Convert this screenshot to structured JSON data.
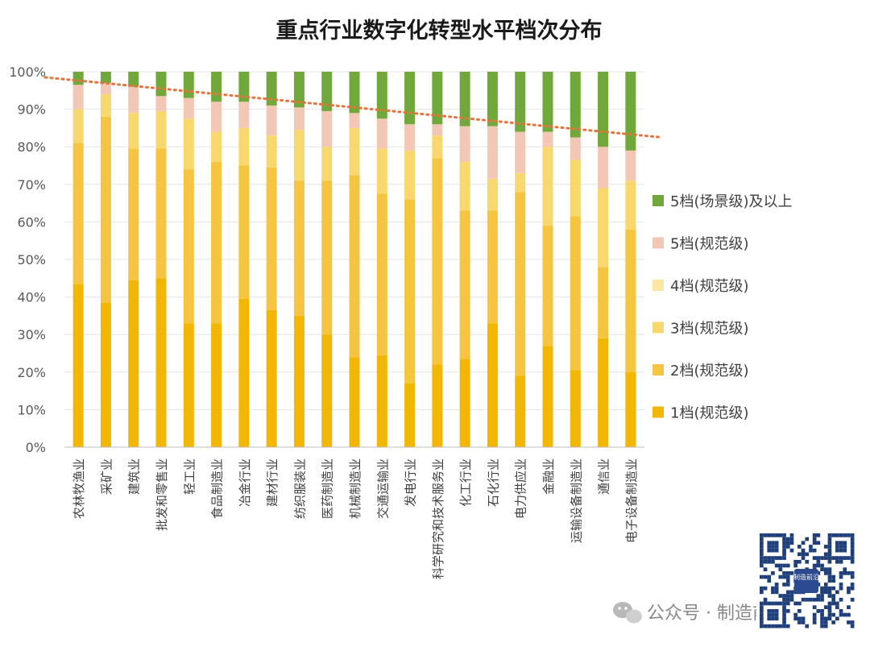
{
  "chart_data": {
    "type": "bar",
    "stacked": true,
    "title": "重点行业数字化转型水平档次分布",
    "xlabel": "",
    "ylabel": "",
    "ylim": [
      0,
      100
    ],
    "yticks": [
      "0%",
      "10%",
      "20%",
      "30%",
      "40%",
      "50%",
      "60%",
      "70%",
      "80%",
      "90%",
      "100%"
    ],
    "categories": [
      "农林牧渔业",
      "采矿业",
      "建筑业",
      "批发和零售业",
      "轻工业",
      "食品制造业",
      "冶金行业",
      "建材行业",
      "纺织服装业",
      "医药制造业",
      "机械制造业",
      "交通运输业",
      "发电行业",
      "科学研究和技术服务业",
      "化工行业",
      "石化行业",
      "电力供应业",
      "金融业",
      "运输设备制造业",
      "通信业",
      "电子设备制造业"
    ],
    "series": [
      {
        "name": "1档(规范级)",
        "color": "#f2b705",
        "values": [
          43.5,
          38.5,
          44.5,
          45,
          33,
          33,
          39.5,
          36.5,
          35,
          30,
          24,
          24.5,
          17,
          22,
          23.5,
          33,
          19,
          27,
          20.5,
          29,
          20
        ]
      },
      {
        "name": "2档(规范级)",
        "color": "#f5c542",
        "values": [
          37.5,
          49.5,
          35,
          34.5,
          41,
          43,
          35.5,
          38,
          36,
          41,
          48.5,
          43,
          49,
          55,
          39.5,
          30,
          49,
          32,
          41,
          19,
          38
        ]
      },
      {
        "name": "3档(规范级)",
        "color": "#f9d76f",
        "values": [
          9,
          6,
          9.5,
          10,
          13.5,
          8,
          10,
          8.5,
          13.5,
          9,
          12.5,
          12,
          13,
          6,
          13,
          8.5,
          5,
          21,
          15,
          21,
          13
        ]
      },
      {
        "name": "4档(规范级)",
        "color": "#fbe7a1",
        "values": [
          0,
          0,
          0,
          0,
          0,
          0,
          0,
          0,
          0,
          0,
          0,
          0,
          0,
          0,
          0,
          0,
          0,
          0,
          0,
          0,
          0
        ]
      },
      {
        "name": "5档(规范级)",
        "color": "#f2c7b5",
        "values": [
          6.5,
          3,
          7,
          4,
          5.5,
          8,
          7,
          8,
          6,
          9.5,
          4,
          8,
          7,
          3,
          9.5,
          14,
          11,
          4,
          6,
          11,
          8
        ]
      },
      {
        "name": "5档(场景级)及以上",
        "color": "#70a83b",
        "values": [
          3.5,
          3,
          4,
          6.5,
          7,
          8,
          8,
          9,
          9.5,
          10.5,
          11,
          12.5,
          14,
          14,
          14.5,
          14.5,
          16,
          16,
          17.5,
          20,
          21
        ]
      }
    ],
    "legend_order": [
      "5档(场景级)及以上",
      "5档(规范级)",
      "4档(规范级)",
      "3档(规范级)",
      "2档(规范级)",
      "1档(规范级)"
    ],
    "legend_position": "right",
    "trendline": {
      "style": "dotted",
      "color": "#e8733a",
      "from_value": 98.5,
      "to_value": 82.5
    }
  },
  "watermark": {
    "text": "公众号 · 制造前沿",
    "qr_label": "制造前沿"
  }
}
